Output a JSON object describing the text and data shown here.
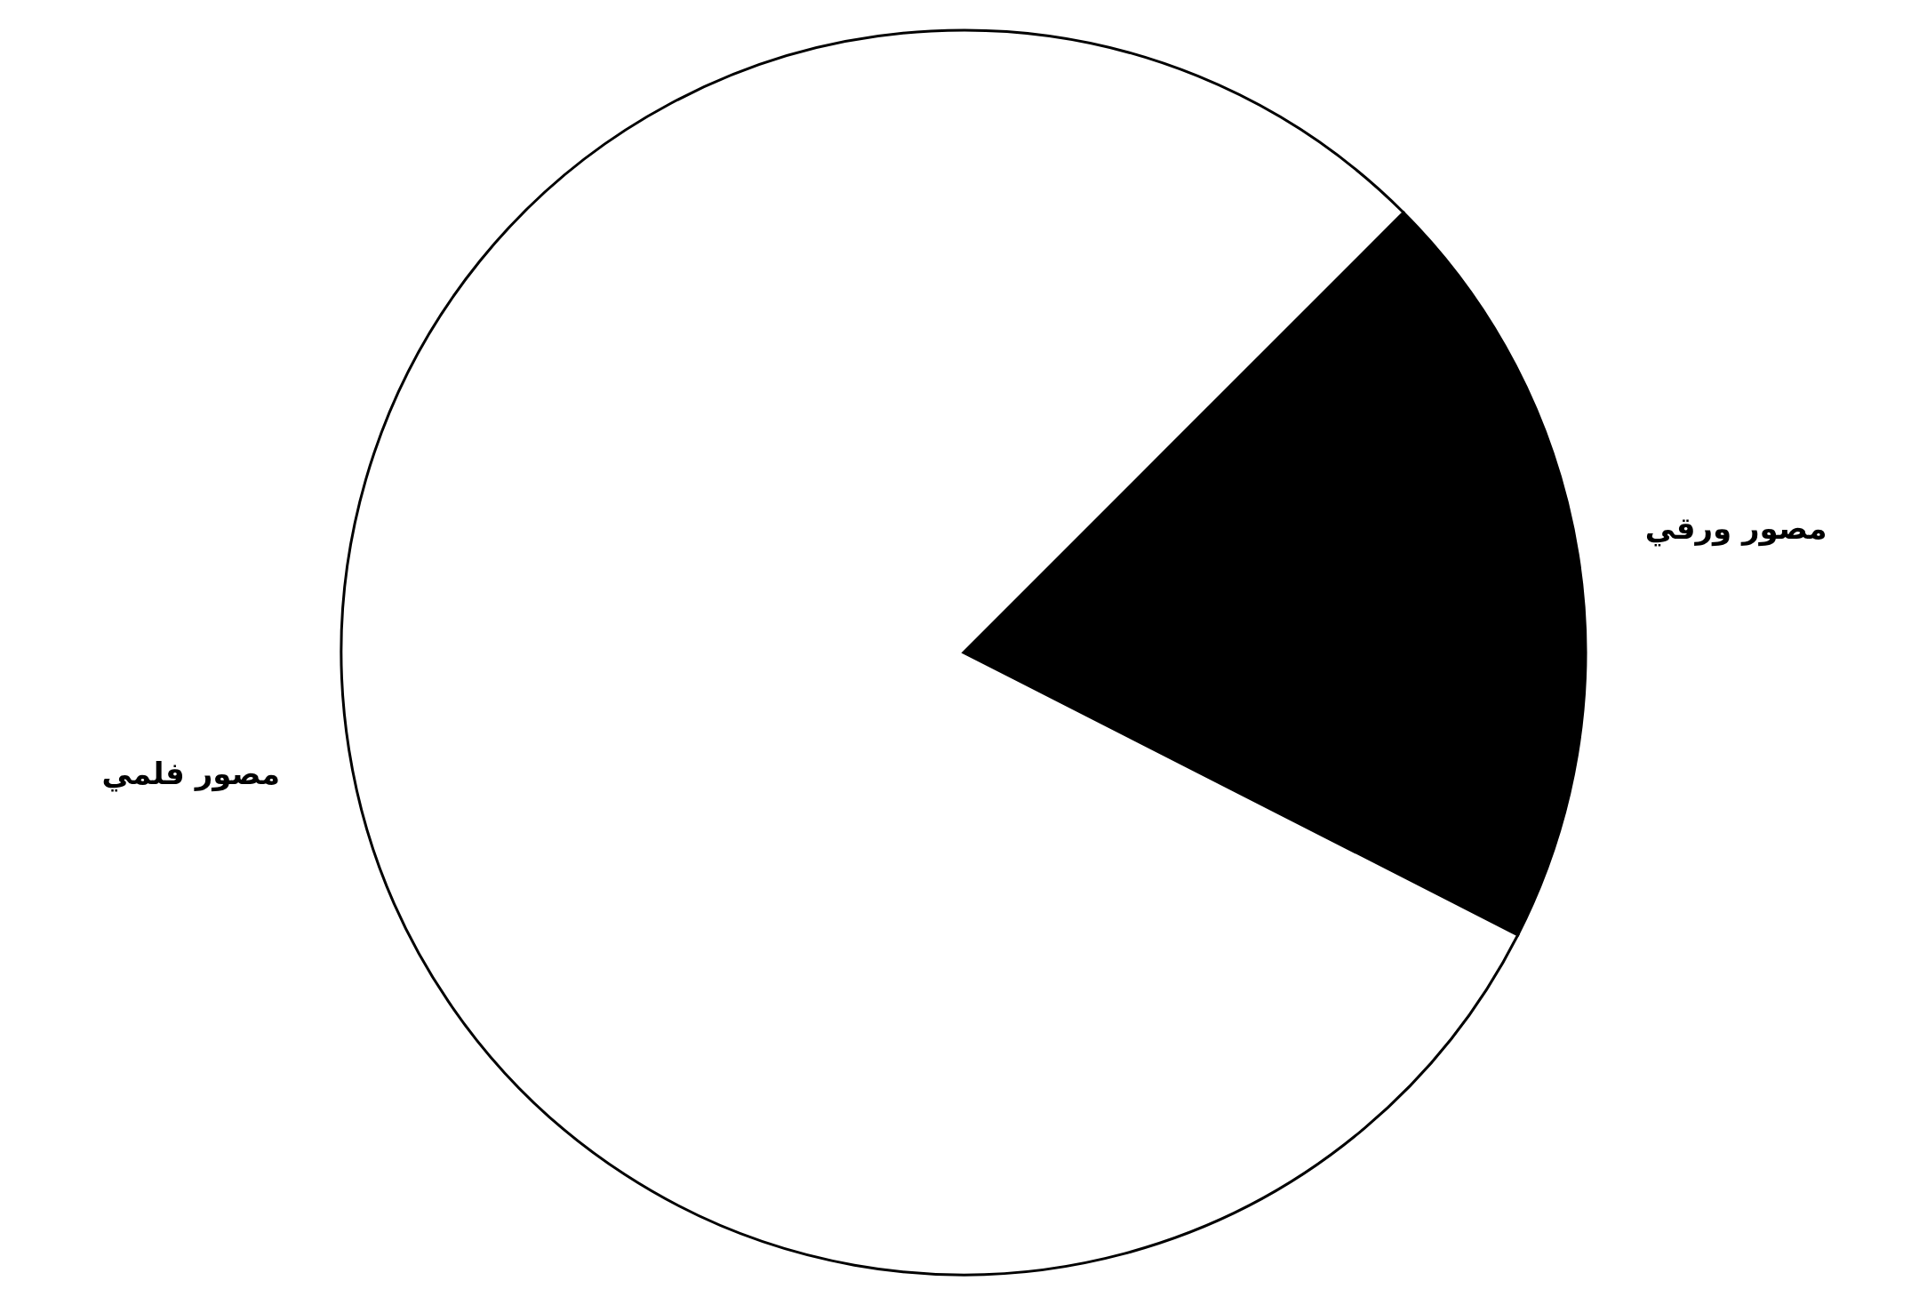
{
  "chart_data": {
    "type": "pie",
    "categories": [
      "مصور ورقي",
      "مصور فلمي"
    ],
    "values": [
      20,
      80
    ],
    "colors": [
      "#000000",
      "#ffffff"
    ]
  }
}
